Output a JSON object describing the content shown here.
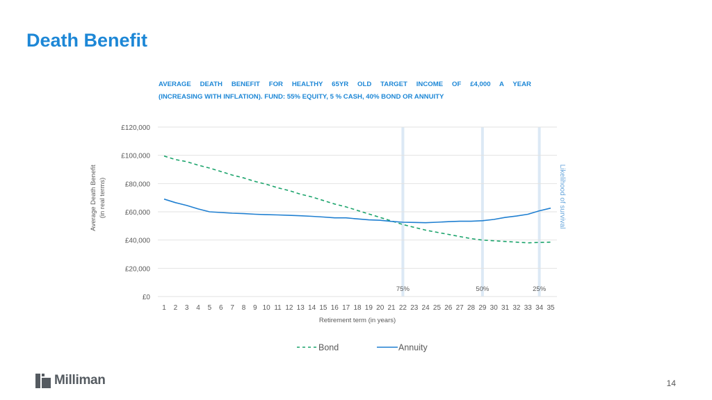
{
  "slide": {
    "title": "Death Benefit",
    "page_number": "14",
    "brand": {
      "name": "Milliman",
      "logo_icon": "milliman-logo-icon"
    }
  },
  "colors": {
    "title": "#1d87d6",
    "bond": "#1aa36b",
    "annuity": "#1f7fd1",
    "marker": "#dce9f5",
    "grid": "#e2e2e2",
    "axis_text": "#595959"
  },
  "chart_data": {
    "type": "line",
    "title_line1": "AVERAGE DEATH BENEFIT FOR HEALTHY 65YR OLD TARGET INCOME OF £4,000 A YEAR",
    "title_line2": "(INCREASING WITH INFLATION). FUND: 55% EQUITY, 5 % CASH, 40% BOND OR ANNUITY",
    "xlabel": "Retirement term (in years)",
    "ylabel_line1": "Average Death Benefit",
    "ylabel_line2": "(in real terms)",
    "secondary_label": "Likelihood of survival",
    "ylim": [
      0,
      120000
    ],
    "yticks": [
      0,
      20000,
      40000,
      60000,
      80000,
      100000,
      120000
    ],
    "ytick_labels": [
      "£0",
      "£20,000",
      "£40,000",
      "£60,000",
      "£80,000",
      "£100,000",
      "£120,000"
    ],
    "x": [
      1,
      2,
      3,
      4,
      5,
      6,
      7,
      8,
      9,
      10,
      11,
      12,
      13,
      14,
      15,
      16,
      17,
      18,
      19,
      20,
      21,
      22,
      23,
      24,
      25,
      26,
      27,
      28,
      29,
      30,
      31,
      32,
      33,
      34,
      35
    ],
    "grid": "horizontal",
    "legend_position": "bottom",
    "series": [
      {
        "name": "Bond",
        "style": "dashed",
        "values": [
          99500,
          97000,
          95500,
          93000,
          91000,
          88500,
          86000,
          84000,
          81500,
          79500,
          77000,
          75000,
          72500,
          70500,
          68000,
          65500,
          63500,
          61000,
          58500,
          56000,
          53500,
          51000,
          49000,
          47000,
          45500,
          44000,
          42500,
          41000,
          40000,
          39500,
          39000,
          38500,
          38000,
          38300,
          38500
        ]
      },
      {
        "name": "Annuity",
        "style": "solid",
        "values": [
          69000,
          66500,
          64500,
          62000,
          60000,
          59500,
          59000,
          58700,
          58300,
          58000,
          57800,
          57500,
          57200,
          56800,
          56300,
          55700,
          55700,
          55000,
          54300,
          54000,
          53200,
          52600,
          52500,
          52300,
          52600,
          53000,
          53300,
          53300,
          53700,
          54600,
          56000,
          57000,
          58300,
          60700,
          62600
        ]
      }
    ],
    "survival_markers": [
      {
        "x": 22,
        "label": "75%"
      },
      {
        "x": 29,
        "label": "50%"
      },
      {
        "x": 34,
        "label": "25%"
      }
    ]
  }
}
